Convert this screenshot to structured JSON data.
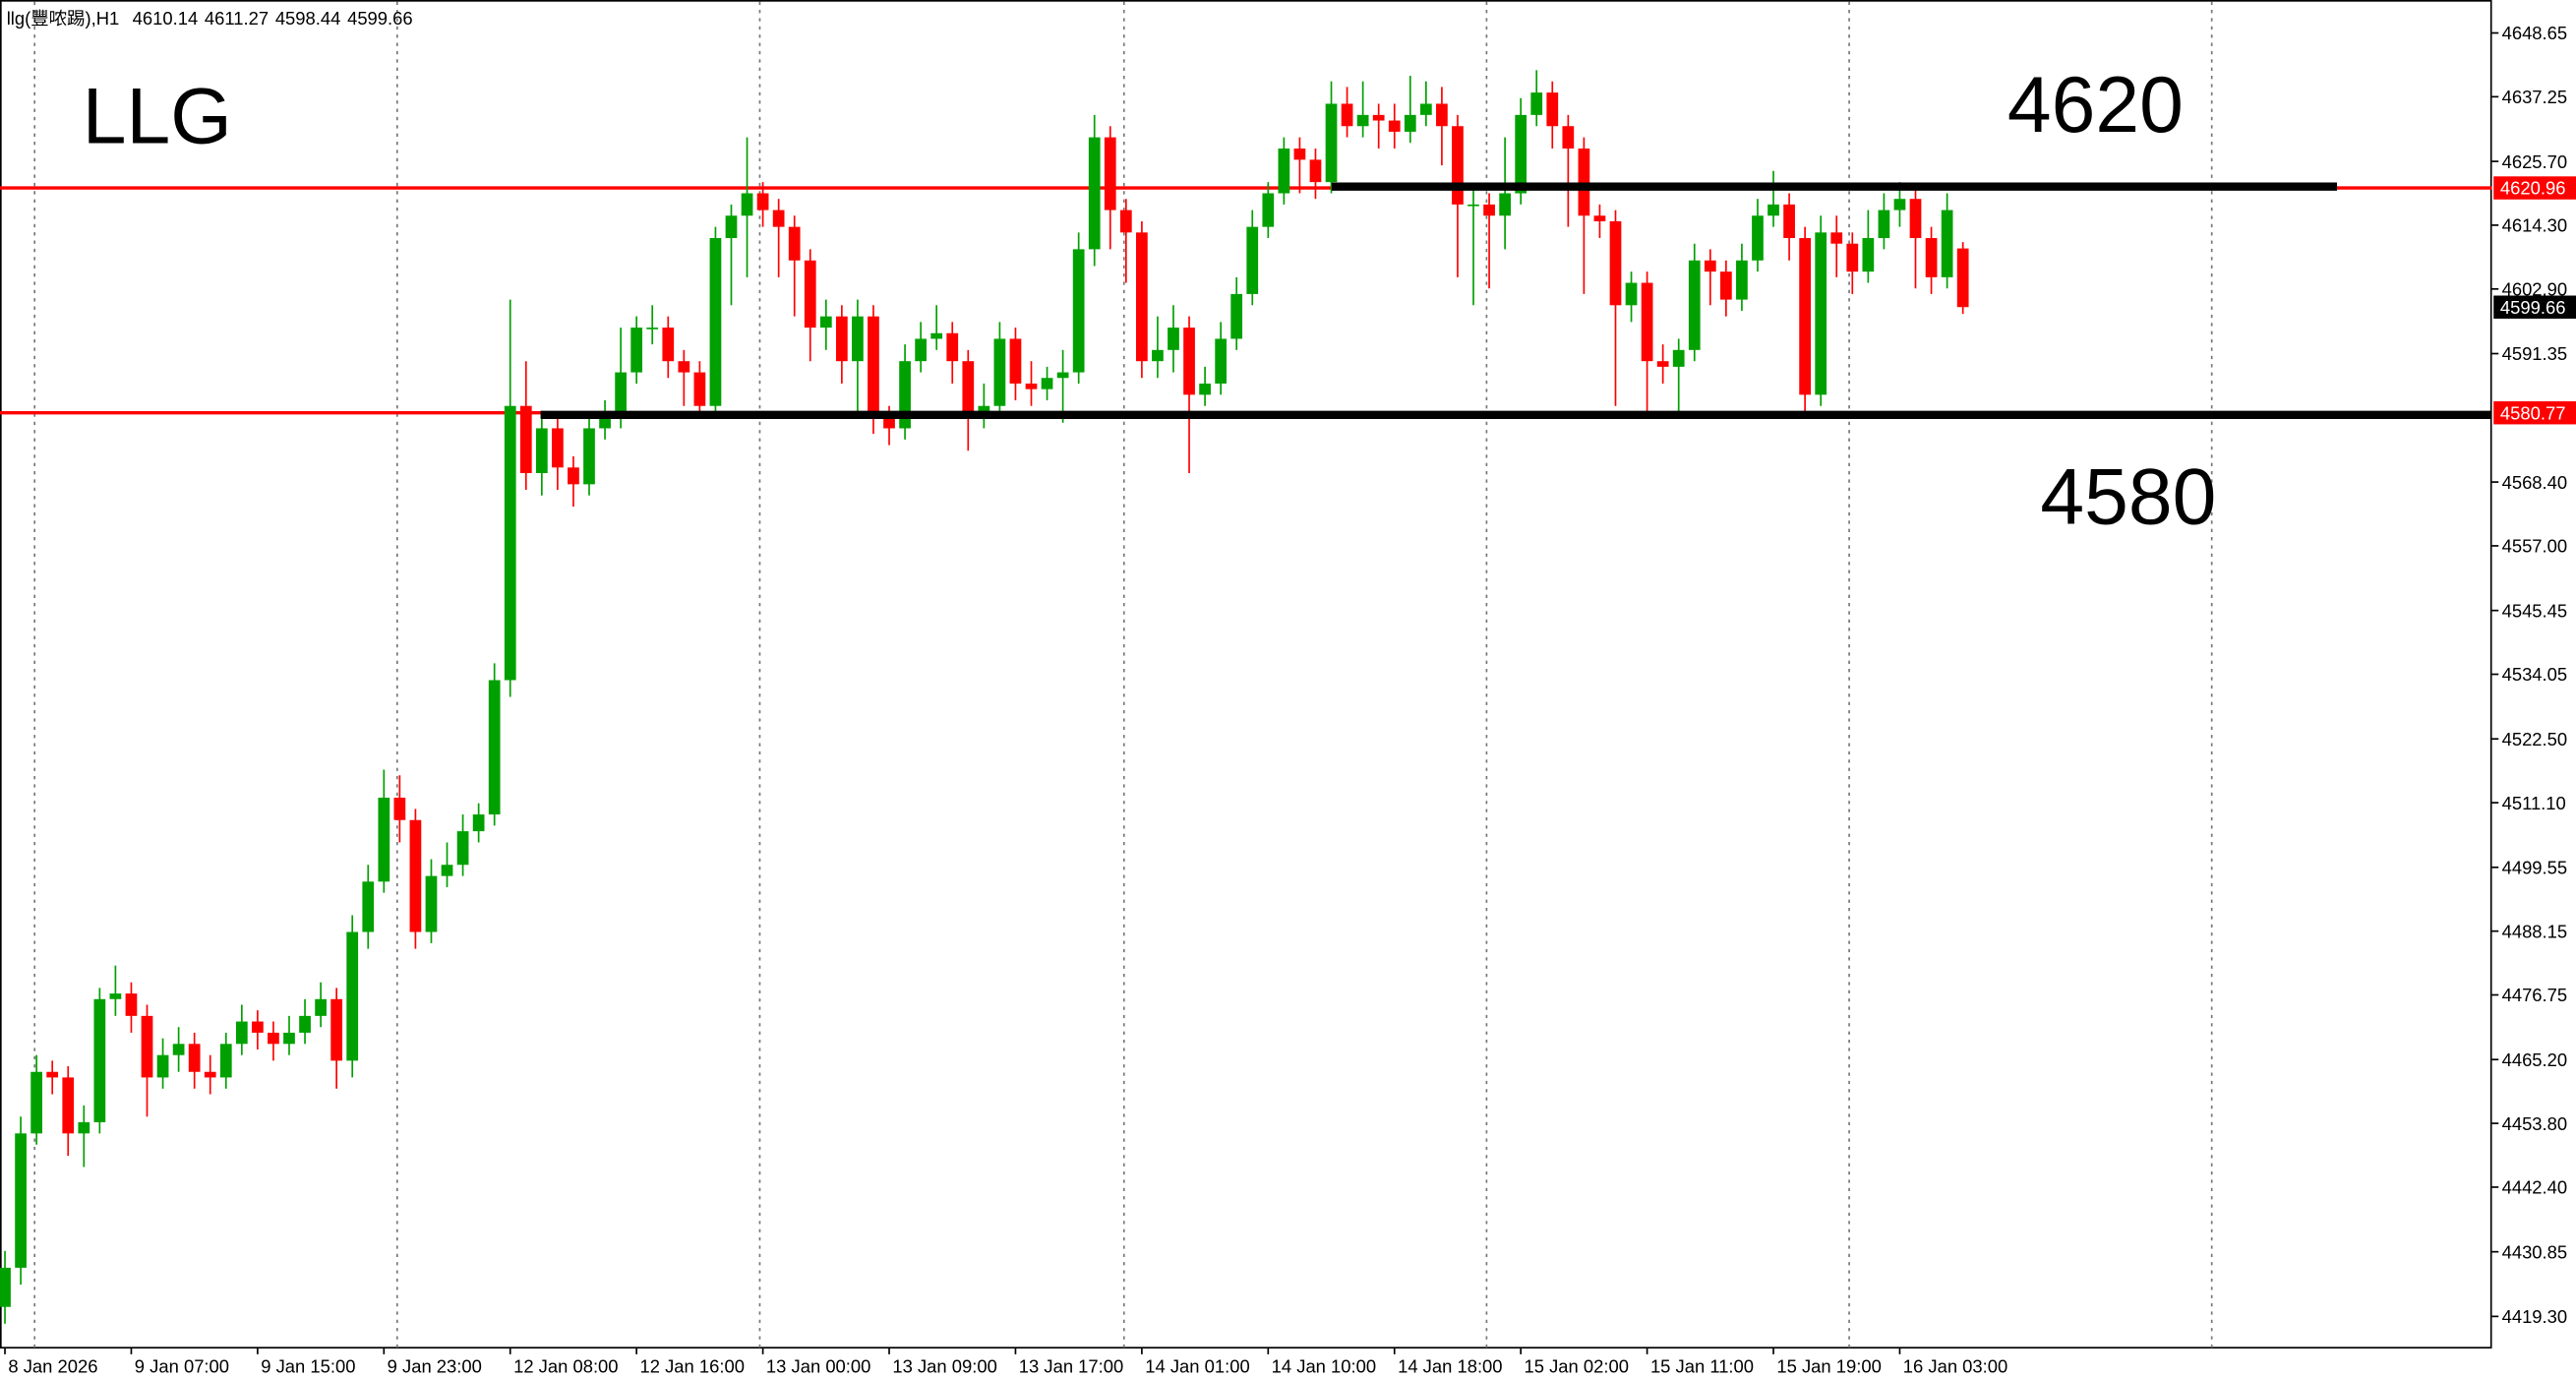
{
  "chart_data": {
    "type": "candlestick",
    "title": "llg(豐哝踢),H1",
    "categories": [
      "8 Jan 2026",
      null,
      null,
      null,
      null,
      null,
      null,
      null,
      "9 Jan 07:00",
      null,
      null,
      null,
      null,
      null,
      null,
      null,
      "9 Jan 15:00",
      null,
      null,
      null,
      null,
      null,
      null,
      null,
      "9 Jan 23:00",
      null,
      null,
      null,
      null,
      null,
      null,
      null,
      "12 Jan 08:00",
      null,
      null,
      null,
      null,
      null,
      null,
      null,
      "12 Jan 16:00",
      null,
      null,
      null,
      null,
      null,
      null,
      null,
      "13 Jan 00:00",
      null,
      null,
      null,
      null,
      null,
      null,
      null,
      "13 Jan 09:00",
      null,
      null,
      null,
      null,
      null,
      null,
      null,
      "13 Jan 17:00",
      null,
      null,
      null,
      null,
      null,
      null,
      null,
      "14 Jan 01:00",
      null,
      null,
      null,
      null,
      null,
      null,
      null,
      "14 Jan 10:00",
      null,
      null,
      null,
      null,
      null,
      null,
      null,
      "14 Jan 18:00",
      null,
      null,
      null,
      null,
      null,
      null,
      null,
      "15 Jan 02:00",
      null,
      null,
      null,
      null,
      null,
      null,
      null,
      "15 Jan 11:00",
      null,
      null,
      null,
      null,
      null,
      null,
      null,
      "15 Jan 19:00",
      null,
      null,
      null,
      null,
      null,
      null,
      null,
      "16 Jan 03:00",
      null,
      null,
      null,
      null
    ],
    "open": [
      4421,
      4428,
      4452,
      4463,
      4462,
      4452,
      4454,
      4476,
      4477,
      4473,
      4462,
      4466,
      4468,
      4463,
      4462,
      4468,
      4472,
      4470,
      4468,
      4470,
      4473,
      4476,
      4465,
      4488,
      4497,
      4512,
      4508,
      4488,
      4498,
      4500,
      4506,
      4509,
      4533,
      4582,
      4570,
      4578,
      4571,
      4568,
      4578,
      4580,
      4588,
      4596,
      4596,
      4590,
      4588,
      4582,
      4612,
      4616,
      4620,
      4617,
      4614,
      4608,
      4596,
      4598,
      4590,
      4598,
      4580,
      4578,
      4590,
      4594,
      4595,
      4590,
      4580,
      4582,
      4594,
      4586,
      4585,
      4587,
      4588,
      4610,
      4630,
      4617,
      4613,
      4590,
      4592,
      4596,
      4584,
      4586,
      4594,
      4602,
      4614,
      4620,
      4628,
      4626,
      4622,
      4636,
      4632,
      4634,
      4633,
      4631,
      4634,
      4636,
      4632,
      4618,
      4618,
      4616,
      4620,
      4634,
      4638,
      4632,
      4628,
      4616,
      4615,
      4600,
      4604,
      4590,
      4589,
      4592,
      4608,
      4606,
      4601,
      4608,
      4616,
      4618,
      4612,
      4584,
      4613,
      4611,
      4606,
      4612,
      4617,
      4619,
      4612,
      4605,
      4610.14
    ],
    "high": [
      4431,
      4455,
      4466,
      4465,
      4464,
      4457,
      4478,
      4482,
      4479,
      4475,
      4469,
      4471,
      4470,
      4466,
      4470,
      4475,
      4474,
      4472,
      4473,
      4476,
      4479,
      4478,
      4491,
      4500,
      4517,
      4516,
      4510,
      4501,
      4504,
      4509,
      4511,
      4536,
      4601,
      4590,
      4581,
      4580,
      4573,
      4581,
      4583,
      4596,
      4598,
      4600,
      4598,
      4592,
      4590,
      4614,
      4618,
      4630,
      4622,
      4619,
      4616,
      4610,
      4601,
      4600,
      4601,
      4600,
      4582,
      4593,
      4597,
      4600,
      4597,
      4592,
      4586,
      4597,
      4596,
      4590,
      4589,
      4592,
      4613,
      4634,
      4632,
      4619,
      4615,
      4598,
      4600,
      4598,
      4589,
      4597,
      4605,
      4617,
      4622,
      4630,
      4630,
      4628,
      4640,
      4639,
      4640,
      4636,
      4636,
      4641,
      4640,
      4639,
      4634,
      4621,
      4620,
      4630,
      4637,
      4642,
      4640,
      4634,
      4630,
      4618,
      4617,
      4606,
      4606,
      4593,
      4594,
      4611,
      4610,
      4608,
      4611,
      4619,
      4624,
      4620,
      4614,
      4616,
      4616,
      4613,
      4617,
      4620,
      4622,
      4621,
      4614,
      4620,
      4611.27
    ],
    "low": [
      4418,
      4425,
      4450,
      4459,
      4448,
      4446,
      4452,
      4473,
      4470,
      4455,
      4460,
      4463,
      4460,
      4459,
      4460,
      4466,
      4467,
      4465,
      4466,
      4468,
      4471,
      4460,
      4462,
      4485,
      4495,
      4504,
      4485,
      4486,
      4496,
      4498,
      4504,
      4507,
      4530,
      4567,
      4566,
      4567,
      4564,
      4566,
      4576,
      4578,
      4586,
      4593,
      4587,
      4582,
      4580,
      4580,
      4600,
      4605,
      4614,
      4605,
      4598,
      4590,
      4592,
      4586,
      4580,
      4577,
      4575,
      4576,
      4588,
      4592,
      4586,
      4574,
      4578,
      4580,
      4583,
      4582,
      4583,
      4579,
      4586,
      4607,
      4610,
      4604,
      4587,
      4587,
      4588,
      4570,
      4582,
      4584,
      4592,
      4600,
      4612,
      4618,
      4620,
      4619,
      4620,
      4630,
      4630,
      4628,
      4628,
      4629,
      4632,
      4625,
      4605,
      4600,
      4603,
      4610,
      4618,
      4632,
      4628,
      4614,
      4602,
      4612,
      4582,
      4597,
      4580,
      4586,
      4580,
      4590,
      4600,
      4598,
      4599,
      4606,
      4614,
      4608,
      4580,
      4582,
      4605,
      4602,
      4604,
      4610,
      4614,
      4603,
      4602,
      4603,
      4598.44
    ],
    "close": [
      4428,
      4452,
      4463,
      4462,
      4452,
      4454,
      4476,
      4477,
      4473,
      4462,
      4466,
      4468,
      4463,
      4462,
      4468,
      4472,
      4470,
      4468,
      4470,
      4473,
      4476,
      4465,
      4488,
      4497,
      4512,
      4508,
      4488,
      4498,
      4500,
      4506,
      4509,
      4533,
      4582,
      4570,
      4578,
      4571,
      4568,
      4578,
      4580,
      4588,
      4596,
      4596,
      4590,
      4588,
      4582,
      4612,
      4616,
      4620,
      4617,
      4614,
      4608,
      4596,
      4598,
      4590,
      4598,
      4580,
      4578,
      4590,
      4594,
      4595,
      4590,
      4580,
      4582,
      4594,
      4586,
      4585,
      4587,
      4588,
      4610,
      4630,
      4617,
      4613,
      4590,
      4592,
      4596,
      4584,
      4586,
      4594,
      4602,
      4614,
      4620,
      4628,
      4626,
      4622,
      4636,
      4632,
      4634,
      4633,
      4631,
      4634,
      4636,
      4632,
      4618,
      4618,
      4616,
      4620,
      4634,
      4638,
      4632,
      4628,
      4616,
      4615,
      4600,
      4604,
      4590,
      4589,
      4592,
      4608,
      4606,
      4601,
      4608,
      4616,
      4618,
      4612,
      4584,
      4613,
      4611,
      4606,
      4612,
      4617,
      4619,
      4612,
      4605,
      4617,
      4599.66
    ],
    "up_color": "#00a000",
    "down_color": "#ff0000",
    "ylim": [
      4413.71,
      4654.54
    ],
    "yticks": [
      4648.65,
      4637.25,
      {
        "value": 4625.7,
        "label": "4625.70"
      },
      {
        "value": 4614.3,
        "label": "4614.30"
      },
      {
        "value": 4602.9,
        "label": "4602.90"
      },
      4591.35,
      {
        "value": 4568.4,
        "label": "4568.40"
      },
      {
        "value": 4557,
        "label": "4557.00"
      },
      4545.45,
      4534.05,
      {
        "value": 4522.5,
        "label": "4522.50"
      },
      {
        "value": 4511.1,
        "label": "4511.10"
      },
      4499.55,
      4488.15,
      4476.75,
      {
        "value": 4465.2,
        "label": "4465.20"
      },
      {
        "value": 4453.8,
        "label": "4453.80"
      },
      {
        "value": 4442.4,
        "label": "4442.40"
      },
      4430.85,
      {
        "value": 4419.3,
        "label": "4419.30"
      }
    ],
    "hlines": [
      4620.96,
      4580.77
    ],
    "hline_color": "#ff0000",
    "levels": [
      4621.2,
      4580.4
    ],
    "level_color": "#000000",
    "annotations": [
      "LLG",
      "4620",
      "4580"
    ]
  }
}
